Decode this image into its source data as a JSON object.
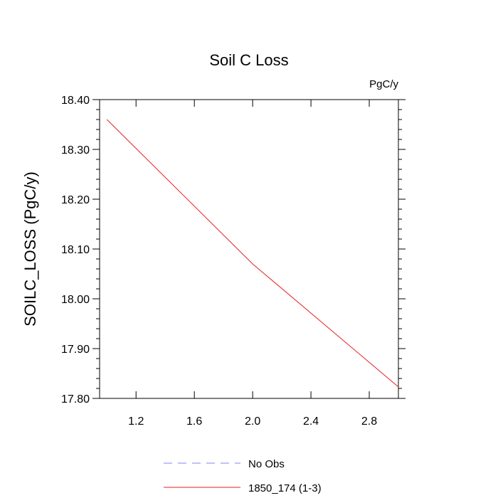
{
  "chart_data": {
    "type": "line",
    "title": "Soil C Loss",
    "units": "PgC/y",
    "xlabel": "",
    "ylabel": "SOILC_LOSS  (PgC/y)",
    "xlim": [
      0.95,
      3.0
    ],
    "ylim": [
      17.8,
      18.4
    ],
    "x_ticks": [
      1.2,
      1.6,
      2.0,
      2.4,
      2.8
    ],
    "x_tick_labels": [
      "1.2",
      "1.6",
      "2.0",
      "2.4",
      "2.8"
    ],
    "y_ticks": [
      17.8,
      17.9,
      18.0,
      18.1,
      18.2,
      18.3,
      18.4
    ],
    "y_tick_labels": [
      "17.80",
      "17.90",
      "18.00",
      "18.10",
      "18.20",
      "18.30",
      "18.40"
    ],
    "grid": false,
    "legend_placement": "bottom-center",
    "series": [
      {
        "name": "No Obs",
        "x": [],
        "values": [],
        "color": "#8080ff",
        "dashed": true
      },
      {
        "name": "1850_174 (1-3)",
        "x": [
          1.0,
          2.0,
          3.0
        ],
        "values": [
          18.36,
          18.07,
          17.823
        ],
        "color": "#e81e1e",
        "dashed": false
      }
    ]
  }
}
